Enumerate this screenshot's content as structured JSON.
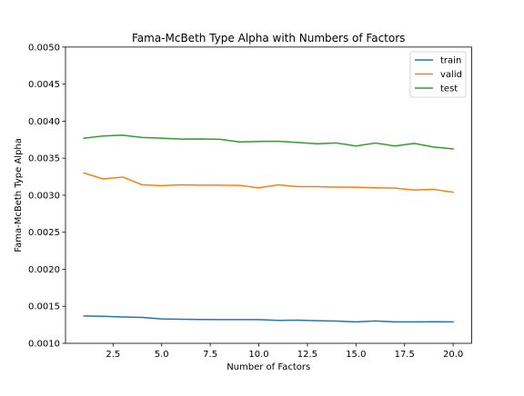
{
  "chart_data": {
    "type": "line",
    "title": "Fama-McBeth Type Alpha with Numbers of Factors",
    "xlabel": "Number of Factors",
    "ylabel": "Fama-McBeth Type Alpha",
    "xlim": [
      0.05,
      20.95
    ],
    "ylim": [
      0.001,
      0.005
    ],
    "xticks": [
      2.5,
      5.0,
      7.5,
      10.0,
      12.5,
      15.0,
      17.5,
      20.0
    ],
    "xtick_labels": [
      "2.5",
      "5.0",
      "7.5",
      "10.0",
      "12.5",
      "15.0",
      "17.5",
      "20.0"
    ],
    "yticks": [
      0.001,
      0.0015,
      0.002,
      0.0025,
      0.003,
      0.0035,
      0.004,
      0.0045,
      0.005
    ],
    "ytick_labels": [
      "0.0010",
      "0.0015",
      "0.0020",
      "0.0025",
      "0.0030",
      "0.0035",
      "0.0040",
      "0.0045",
      "0.0050"
    ],
    "grid": false,
    "legend_position": "top-right",
    "x": [
      1,
      2,
      3,
      4,
      5,
      6,
      7,
      8,
      9,
      10,
      11,
      12,
      13,
      14,
      15,
      16,
      17,
      18,
      19,
      20
    ],
    "series": [
      {
        "name": "train",
        "color": "#1f77b4",
        "values": [
          0.00137,
          0.001365,
          0.001355,
          0.00135,
          0.00133,
          0.001325,
          0.001322,
          0.00132,
          0.00132,
          0.00132,
          0.00131,
          0.001312,
          0.001305,
          0.0013,
          0.00129,
          0.001302,
          0.00129,
          0.00129,
          0.001292,
          0.00129
        ]
      },
      {
        "name": "valid",
        "color": "#ff7f0e",
        "values": [
          0.0033,
          0.00322,
          0.003245,
          0.00314,
          0.00313,
          0.00314,
          0.003135,
          0.003135,
          0.003132,
          0.0031,
          0.00314,
          0.003115,
          0.003115,
          0.00311,
          0.003108,
          0.0031,
          0.003095,
          0.00307,
          0.003078,
          0.00304
        ]
      },
      {
        "name": "test",
        "color": "#2ca02c",
        "values": [
          0.00377,
          0.0038,
          0.00381,
          0.00378,
          0.00377,
          0.003758,
          0.00376,
          0.003755,
          0.00372,
          0.003725,
          0.003728,
          0.003712,
          0.003695,
          0.003705,
          0.003665,
          0.003705,
          0.003665,
          0.0037,
          0.00365,
          0.003625
        ]
      }
    ]
  }
}
